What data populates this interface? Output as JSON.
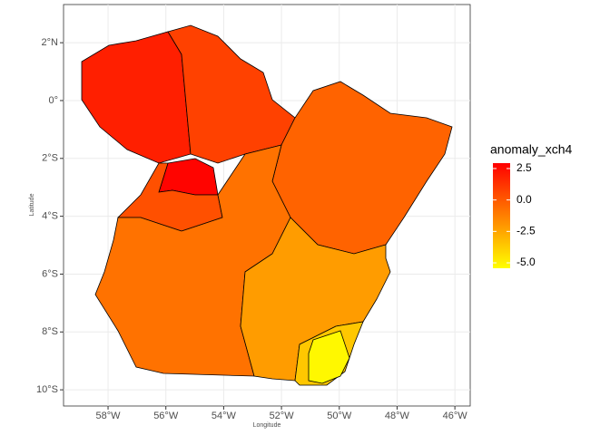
{
  "chart_data": {
    "type": "choropleth",
    "xlabel": "Longitude",
    "ylabel": "Latitude",
    "xlim": [
      -59.54,
      -45.47
    ],
    "xticks": [
      {
        "value": -58,
        "label": "58°W"
      },
      {
        "value": -56,
        "label": "56°W"
      },
      {
        "value": -54,
        "label": "54°W"
      },
      {
        "value": -52,
        "label": "52°W"
      },
      {
        "value": -50,
        "label": "50°W"
      },
      {
        "value": -48,
        "label": "48°W"
      },
      {
        "value": -46,
        "label": "46°W"
      }
    ],
    "ylim": [
      -10.56,
      3.32
    ],
    "yticks": [
      {
        "value": 2,
        "label": "2°N"
      },
      {
        "value": 0,
        "label": "0°"
      },
      {
        "value": -2,
        "label": "2°S"
      },
      {
        "value": -4,
        "label": "4°S"
      },
      {
        "value": -6,
        "label": "6°S"
      },
      {
        "value": -8,
        "label": "8°S"
      },
      {
        "value": -10,
        "label": "10°S"
      }
    ],
    "grid": true,
    "values": [
      1.9,
      0.8,
      2.8,
      0.3,
      -0.3,
      -0.8,
      -2.2,
      -3.6,
      -5.2
    ],
    "legend_title": "anomaly_xch4",
    "clim": [
      -5.43,
      2.93
    ],
    "cticks": [
      2.5,
      {
        "value": 0,
        "label": "0.0"
      },
      -2.5,
      {
        "value": -5,
        "label": "-5.0"
      }
    ],
    "low_color": "#ffff00",
    "high_color": "#ff0000"
  }
}
